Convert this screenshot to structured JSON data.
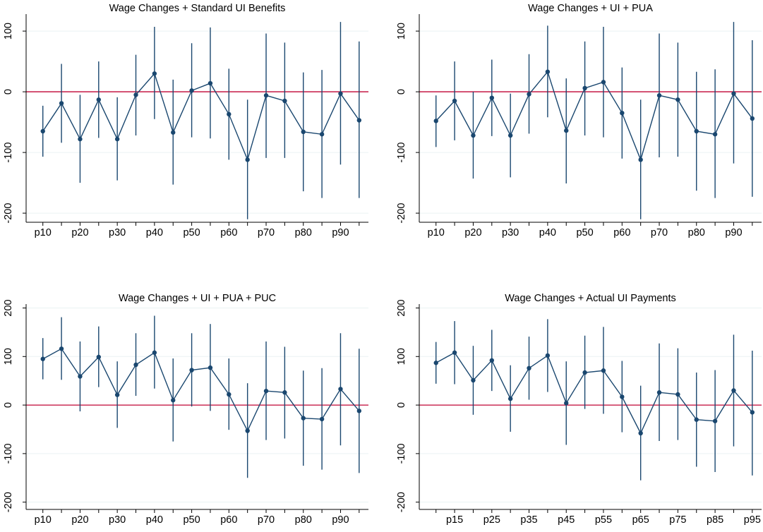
{
  "style": {
    "line_color": "#1a476f",
    "zero_line_color": "#c10534",
    "grid_color": "#eaf2f3",
    "axis_color": "#000000"
  },
  "chart_data": [
    {
      "type": "line",
      "title": "Wage Changes + Standard UI Benefits",
      "xlabel": "",
      "ylabel": "",
      "ylim": [
        -215,
        128
      ],
      "yticks": [
        100,
        0,
        -100,
        -200
      ],
      "ytick_labels": [
        "100",
        "0",
        "-100",
        "-200"
      ],
      "xlim": [
        5.5,
        97.5
      ],
      "xtick_positions": [
        10,
        20,
        30,
        40,
        50,
        60,
        70,
        80,
        90
      ],
      "xtick_labels": [
        "p10",
        "p20",
        "p30",
        "p40",
        "p50",
        "p60",
        "p70",
        "p80",
        "p90"
      ],
      "minor_tick_positions": [
        15,
        25,
        35,
        45,
        55,
        65,
        75,
        85,
        95
      ],
      "grid": true,
      "reference_line": 0,
      "x": [
        10,
        15,
        20,
        25,
        30,
        35,
        40,
        45,
        50,
        55,
        60,
        65,
        70,
        75,
        80,
        85,
        90,
        95
      ],
      "values": [
        -65,
        -19,
        -78,
        -13,
        -78,
        -5,
        30,
        -67,
        2,
        14,
        -37,
        -112,
        -6,
        -15,
        -66,
        -70,
        -3,
        -47
      ],
      "ci_low": [
        -107,
        -84,
        -150,
        -76,
        -146,
        -72,
        -45,
        -153,
        -75,
        -77,
        -112,
        -210,
        -109,
        -109,
        -164,
        -175,
        -120,
        -175
      ],
      "ci_high": [
        -23,
        46,
        -5,
        50,
        -9,
        61,
        107,
        20,
        80,
        106,
        38,
        -13,
        96,
        81,
        32,
        36,
        115,
        83
      ]
    },
    {
      "type": "line",
      "title": "Wage Changes + UI + PUA",
      "xlabel": "",
      "ylabel": "",
      "ylim": [
        -215,
        128
      ],
      "yticks": [
        100,
        0,
        -100,
        -200
      ],
      "ytick_labels": [
        "100",
        "0",
        "-100",
        "-200"
      ],
      "xlim": [
        5.5,
        97.5
      ],
      "xtick_positions": [
        10,
        20,
        30,
        40,
        50,
        60,
        70,
        80,
        90
      ],
      "xtick_labels": [
        "p10",
        "p20",
        "p30",
        "p40",
        "p50",
        "p60",
        "p70",
        "p80",
        "p90"
      ],
      "minor_tick_positions": [
        15,
        25,
        35,
        45,
        55,
        65,
        75,
        85,
        95
      ],
      "grid": true,
      "reference_line": 0,
      "x": [
        10,
        15,
        20,
        25,
        30,
        35,
        40,
        45,
        50,
        55,
        60,
        65,
        70,
        75,
        80,
        85,
        90,
        95
      ],
      "values": [
        -48,
        -15,
        -72,
        -10,
        -72,
        -4,
        33,
        -64,
        6,
        16,
        -35,
        -112,
        -6,
        -13,
        -65,
        -70,
        -3,
        -44
      ],
      "ci_low": [
        -91,
        -80,
        -143,
        -73,
        -141,
        -69,
        -42,
        -151,
        -72,
        -75,
        -110,
        -210,
        -108,
        -107,
        -163,
        -175,
        -118,
        -173
      ],
      "ci_high": [
        -6,
        50,
        0,
        53,
        -3,
        62,
        109,
        22,
        83,
        107,
        40,
        -13,
        96,
        81,
        33,
        37,
        115,
        85
      ]
    },
    {
      "type": "line",
      "title": "Wage Changes + UI + PUA + PUC",
      "xlabel": "",
      "ylabel": "",
      "ylim": [
        -215,
        208
      ],
      "yticks": [
        200,
        100,
        0,
        -100,
        -200
      ],
      "ytick_labels": [
        "200",
        "100",
        "0",
        "-100",
        "-200"
      ],
      "xlim": [
        5.5,
        97.5
      ],
      "xtick_positions": [
        10,
        20,
        30,
        40,
        50,
        60,
        70,
        80,
        90
      ],
      "xtick_labels": [
        "p10",
        "p20",
        "p30",
        "p40",
        "p50",
        "p60",
        "p70",
        "p80",
        "p90"
      ],
      "minor_tick_positions": [
        15,
        25,
        35,
        45,
        55,
        65,
        75,
        85,
        95
      ],
      "grid": true,
      "reference_line": 0,
      "x": [
        10,
        15,
        20,
        25,
        30,
        35,
        40,
        45,
        50,
        55,
        60,
        65,
        70,
        75,
        80,
        85,
        90,
        95
      ],
      "values": [
        95,
        116,
        59,
        99,
        21,
        83,
        108,
        10,
        72,
        77,
        22,
        -53,
        29,
        26,
        -27,
        -29,
        33,
        -12
      ],
      "ci_low": [
        53,
        52,
        -13,
        37,
        -47,
        19,
        34,
        -75,
        -3,
        -12,
        -51,
        -150,
        -72,
        -69,
        -125,
        -133,
        -83,
        -140
      ],
      "ci_high": [
        138,
        181,
        131,
        162,
        90,
        148,
        184,
        96,
        148,
        167,
        96,
        45,
        131,
        120,
        71,
        76,
        148,
        116
      ]
    },
    {
      "type": "line",
      "title": "Wage Changes + Actual UI Payments",
      "xlabel": "",
      "ylabel": "",
      "ylim": [
        -215,
        208
      ],
      "yticks": [
        200,
        100,
        0,
        -100,
        -200
      ],
      "ytick_labels": [
        "200",
        "100",
        "0",
        "-100",
        "-200"
      ],
      "xlim": [
        5.5,
        97.5
      ],
      "xtick_positions": [
        15,
        25,
        35,
        45,
        55,
        65,
        75,
        85,
        95
      ],
      "xtick_labels": [
        "p15",
        "p25",
        "p35",
        "p45",
        "p55",
        "p65",
        "p75",
        "p85",
        "p95"
      ],
      "minor_tick_positions": [
        10,
        20,
        30,
        40,
        50,
        60,
        70,
        80,
        90
      ],
      "grid": true,
      "reference_line": 0,
      "x": [
        10,
        15,
        20,
        25,
        30,
        35,
        40,
        45,
        50,
        55,
        60,
        65,
        70,
        75,
        80,
        85,
        90,
        95
      ],
      "values": [
        87,
        108,
        51,
        92,
        13,
        76,
        102,
        4,
        67,
        71,
        17,
        -58,
        26,
        22,
        -30,
        -33,
        30,
        -15
      ],
      "ci_low": [
        44,
        43,
        -20,
        29,
        -55,
        11,
        27,
        -82,
        -8,
        -18,
        -56,
        -155,
        -74,
        -72,
        -127,
        -138,
        -85,
        -145
      ],
      "ci_high": [
        130,
        173,
        122,
        155,
        82,
        141,
        177,
        90,
        143,
        161,
        91,
        40,
        127,
        117,
        67,
        72,
        145,
        112
      ]
    }
  ]
}
